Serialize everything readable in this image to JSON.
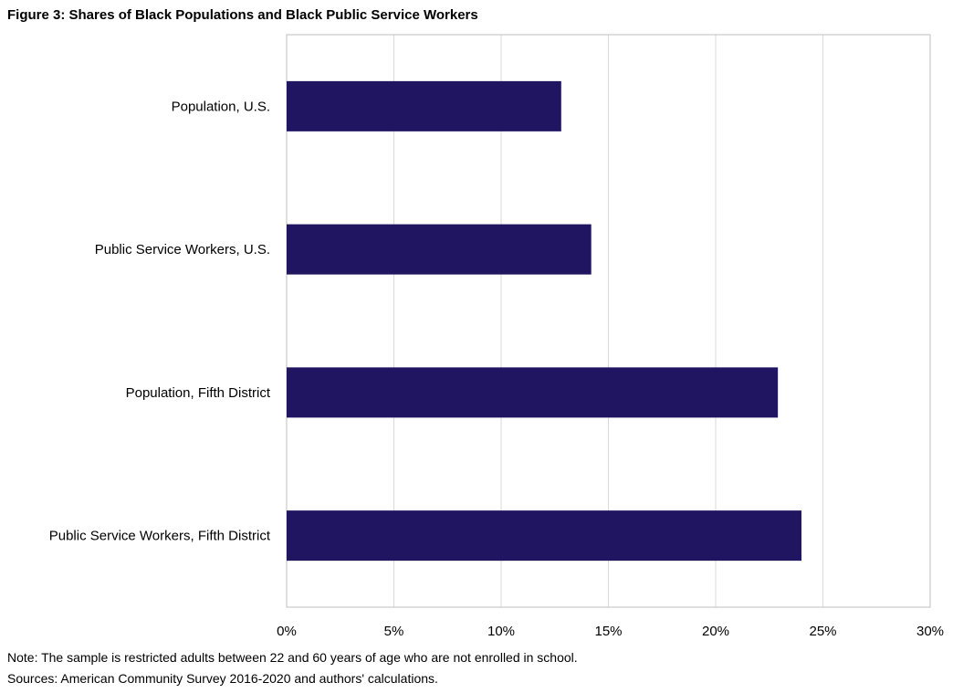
{
  "chart_data": {
    "type": "bar",
    "orientation": "horizontal",
    "title": "Figure 3: Shares of Black Populations and Black Public Service Workers",
    "categories": [
      "Population, U.S.",
      "Public Service Workers, U.S.",
      "Population, Fifth District",
      "Public Service Workers, Fifth District"
    ],
    "values": [
      12.8,
      14.2,
      22.9,
      24.0
    ],
    "xlim": [
      0,
      30
    ],
    "xticks": [
      0,
      5,
      10,
      15,
      20,
      25,
      30
    ],
    "tick_format_suffix": "%",
    "xlabel": "",
    "ylabel": "",
    "grid": "vertical",
    "legend": "none",
    "bar_color": "#201560",
    "note": "Note: The sample is restricted adults between 22 and 60  years of age who are not enrolled in school.",
    "sources": "Sources: American Community Survey 2016-2020 and authors' calculations."
  }
}
